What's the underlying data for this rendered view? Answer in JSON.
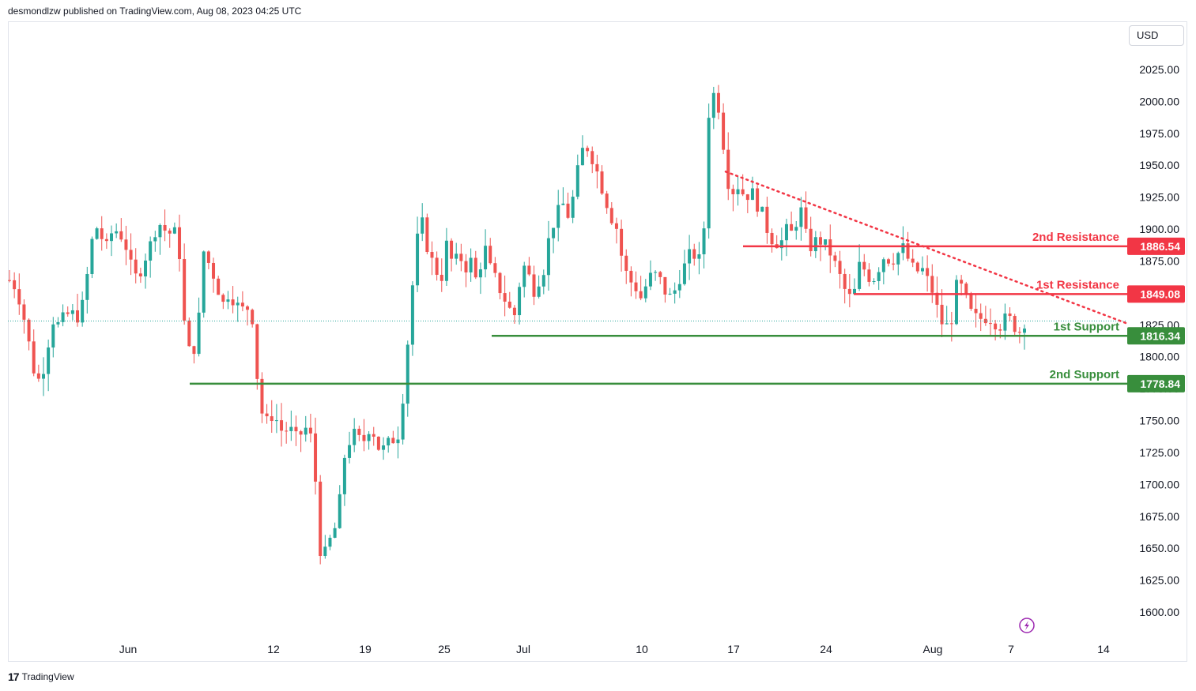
{
  "header": {
    "published_text": "desmondlzw published on TradingView.com, Aug 08, 2023 04:25 UTC"
  },
  "toolbar": {
    "currency_label": "USD"
  },
  "footer": {
    "brand_mark": "17",
    "brand_name": "TradingView"
  },
  "icons": {
    "flash": "lightning-bolt-icon"
  },
  "colors": {
    "up": "#26a69a",
    "down": "#ef5350",
    "resistance": "#f23645",
    "support": "#388e3c",
    "grid_border": "#e0e3eb"
  },
  "chart_data": {
    "type": "candlestick",
    "title": "",
    "y_axis_ticks": [
      2025,
      2000,
      1975,
      1950,
      1925,
      1900,
      1875,
      1850,
      1825,
      1800,
      1775,
      1750,
      1725,
      1700,
      1675,
      1650,
      1625,
      1600
    ],
    "ylim": [
      1588,
      2038
    ],
    "x_axis_ticks": [
      "Jun",
      "12",
      "19",
      "25",
      "Jul",
      "10",
      "17",
      "24",
      "Aug",
      "7",
      "14"
    ],
    "current_price": 1828,
    "levels": [
      {
        "label": "2nd Resistance",
        "price": 1886.54,
        "price_text": "1886.54",
        "kind": "resistance"
      },
      {
        "label": "1st Resistance",
        "price": 1849.08,
        "price_text": "1849.08",
        "kind": "resistance"
      },
      {
        "label": "1st Support",
        "price": 1816.34,
        "price_text": "1816.34",
        "kind": "support"
      },
      {
        "label": "2nd Support",
        "price": 1778.84,
        "price_text": "1778.84",
        "kind": "support"
      }
    ],
    "trendline": {
      "from_price": 1945,
      "to_price": 1826,
      "style": "dotted"
    },
    "price_path": [
      1860,
      1855,
      1840,
      1815,
      1790,
      1780,
      1800,
      1830,
      1825,
      1830,
      1835,
      1830,
      1840,
      1870,
      1905,
      1895,
      1885,
      1900,
      1898,
      1890,
      1870,
      1860,
      1875,
      1885,
      1900,
      1905,
      1895,
      1900,
      1880,
      1810,
      1800,
      1820,
      1885,
      1870,
      1860,
      1840,
      1850,
      1845,
      1835,
      1840,
      1830,
      1770,
      1745,
      1755,
      1750,
      1740,
      1745,
      1735,
      1740,
      1745,
      1730,
      1650,
      1645,
      1660,
      1670,
      1720,
      1735,
      1740,
      1730,
      1745,
      1740,
      1725,
      1730,
      1735,
      1740,
      1780,
      1840,
      1890,
      1905,
      1880,
      1870,
      1860,
      1890,
      1870,
      1880,
      1870,
      1875,
      1855,
      1890,
      1870,
      1860,
      1850,
      1840,
      1830,
      1860,
      1875,
      1850,
      1860,
      1870,
      1900,
      1910,
      1920,
      1910,
      1930,
      1960,
      1965,
      1955,
      1940,
      1925,
      1910,
      1900,
      1870,
      1860,
      1855,
      1845,
      1860,
      1865,
      1860,
      1850,
      1845,
      1860,
      1870,
      1880,
      1880,
      1870,
      1990,
      2008,
      1990,
      1940,
      1930,
      1935,
      1925,
      1930,
      1920,
      1910,
      1895,
      1890,
      1890,
      1900,
      1895,
      1920,
      1895,
      1885,
      1893,
      1888,
      1882,
      1870,
      1858,
      1845,
      1850,
      1875,
      1865,
      1860,
      1870,
      1880,
      1875,
      1880,
      1885,
      1875,
      1865,
      1870,
      1860,
      1850,
      1830,
      1822,
      1830,
      1860,
      1850,
      1835,
      1830,
      1830,
      1832,
      1828,
      1825,
      1830,
      1828,
      1818,
      1828
    ]
  }
}
